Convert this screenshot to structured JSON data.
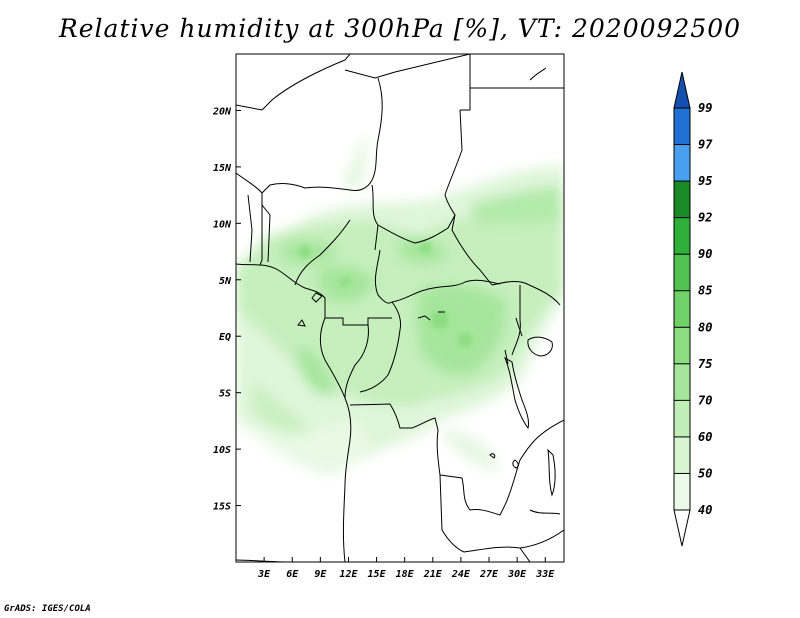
{
  "title": "Relative humidity at 300hPa [%], VT: 2020092500",
  "credit": "GrADS: IGES/COLA",
  "map": {
    "region": "Central Africa",
    "lon_range_deg": [
      0,
      35
    ],
    "lat_range_deg": [
      -20,
      25
    ],
    "x_ticks": [
      "3E",
      "6E",
      "9E",
      "12E",
      "15E",
      "18E",
      "21E",
      "24E",
      "27E",
      "30E",
      "33E"
    ],
    "y_ticks": [
      "20N",
      "15N",
      "10N",
      "5N",
      "EQ",
      "5S",
      "10S",
      "15S"
    ]
  },
  "colorbar": {
    "levels": [
      "40",
      "50",
      "60",
      "70",
      "75",
      "80",
      "85",
      "90",
      "92",
      "95",
      "97",
      "99"
    ],
    "colors": [
      "#ffffff",
      "#ebfbe8",
      "#d6f5d0",
      "#bfeeb6",
      "#a6e69c",
      "#8cdd82",
      "#6fd168",
      "#52c352",
      "#2fae3a",
      "#1a8a26",
      "#4aa0f0",
      "#2070d6",
      "#1550b0"
    ]
  }
}
